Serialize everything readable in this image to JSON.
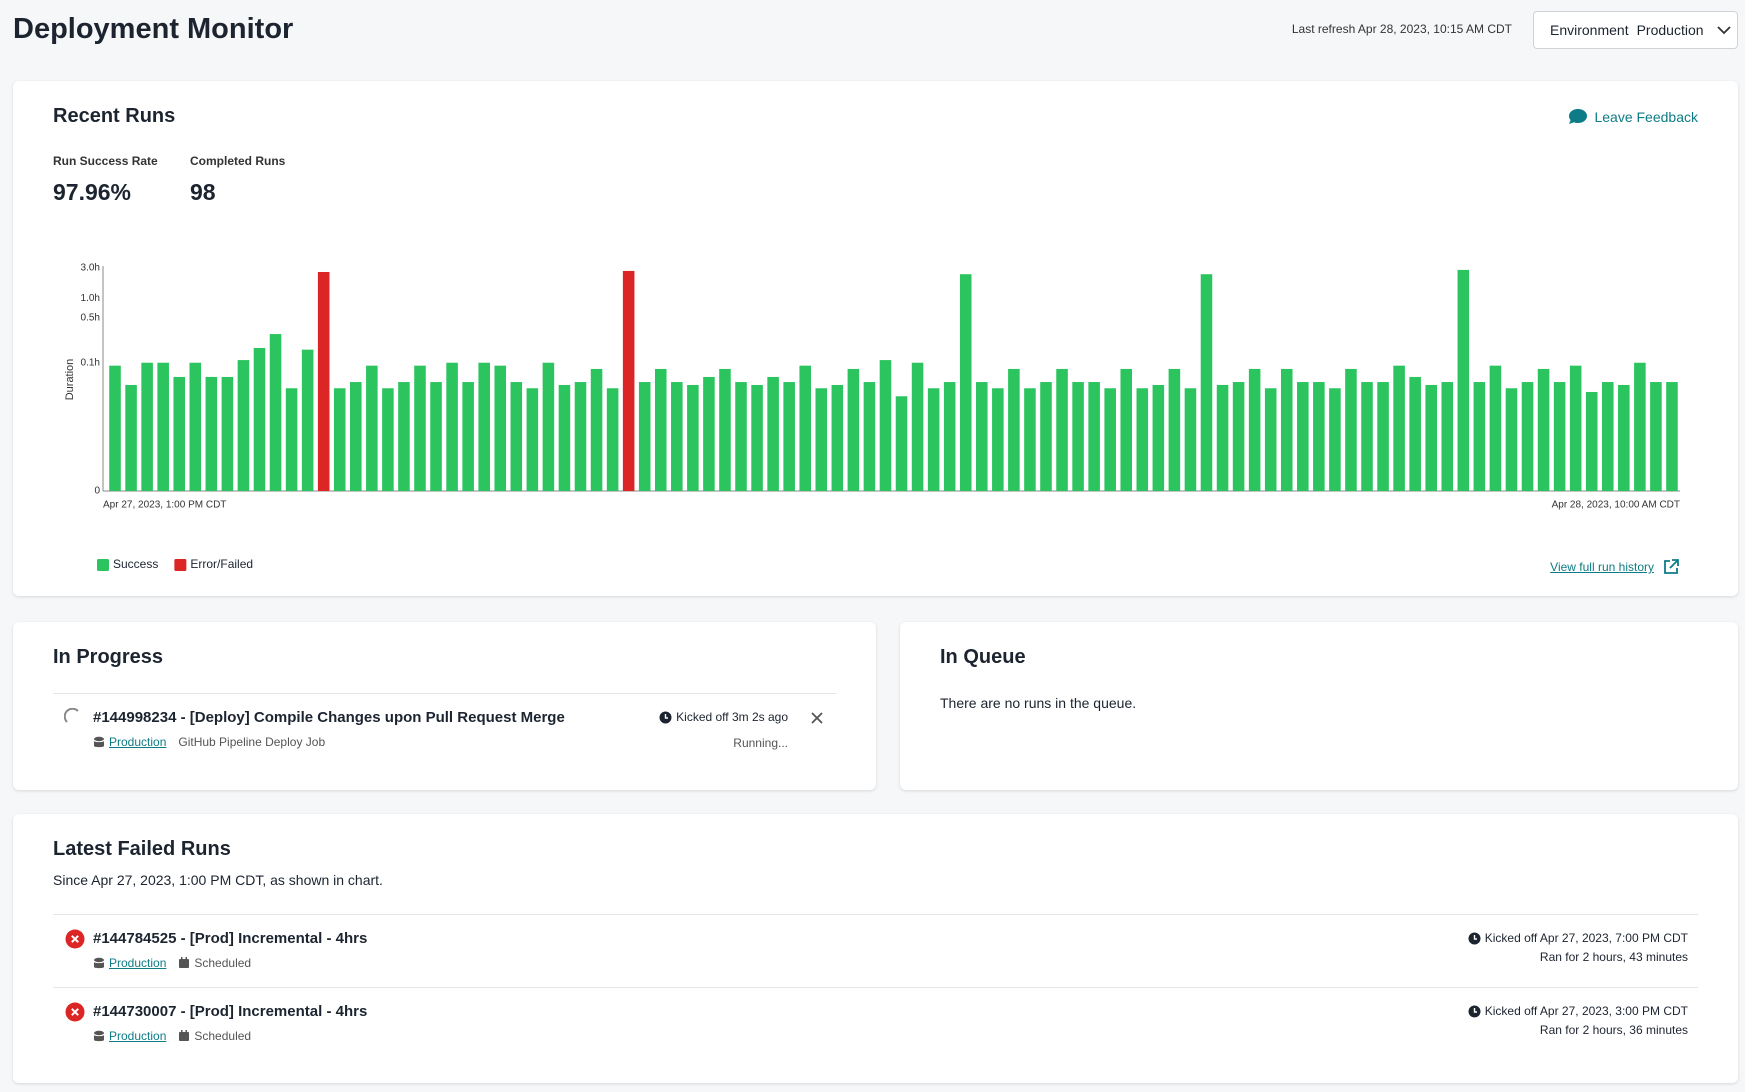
{
  "header": {
    "title": "Deployment Monitor",
    "last_refresh": "Last refresh Apr 28, 2023, 10:15 AM CDT",
    "environment_label": "Environment",
    "environment_value": "Production"
  },
  "recent_runs": {
    "title": "Recent Runs",
    "feedback_link": "Leave Feedback",
    "stats": [
      {
        "label": "Run Success Rate",
        "value": "97.96%"
      },
      {
        "label": "Completed Runs",
        "value": "98"
      }
    ],
    "history_link": "View full run history"
  },
  "chart_data": {
    "type": "bar",
    "y_label": "Duration",
    "yscale": "symlog",
    "linthresh": 0.01,
    "ylim": [
      0,
      3
    ],
    "yticks": [
      0,
      {
        "value": 0.1,
        "label": "0.1h"
      },
      {
        "value": 0.5,
        "label": "0.5h"
      },
      {
        "value": 1,
        "label": "1.0h"
      },
      {
        "value": 3,
        "label": "3.0h"
      }
    ],
    "grid": false,
    "legend": "bottom-left",
    "categories": [
      "Apr 27, 2023, 1:00 PM CDT",
      null,
      null,
      null,
      null,
      null,
      null,
      null,
      null,
      null,
      null,
      null,
      null,
      null,
      null,
      null,
      null,
      null,
      null,
      null,
      null,
      null,
      null,
      null,
      null,
      null,
      null,
      null,
      null,
      null,
      null,
      null,
      null,
      null,
      null,
      null,
      null,
      null,
      null,
      null,
      null,
      null,
      null,
      null,
      null,
      null,
      null,
      null,
      null,
      null,
      null,
      null,
      null,
      null,
      null,
      null,
      null,
      null,
      null,
      null,
      null,
      null,
      null,
      null,
      null,
      null,
      null,
      null,
      null,
      null,
      null,
      null,
      null,
      null,
      null,
      null,
      null,
      null,
      null,
      null,
      null,
      null,
      null,
      null,
      null,
      null,
      null,
      null,
      null,
      null,
      null,
      null,
      null,
      null,
      null,
      null,
      null,
      "Apr 28, 2023, 10:00 AM CDT"
    ],
    "series": [
      {
        "name": "Success",
        "color": "#2cc45e",
        "values": [
          0.09,
          0.045,
          0.1,
          0.1,
          0.06,
          0.1,
          0.06,
          0.06,
          0.11,
          0.17,
          0.28,
          0.04,
          0.16,
          null,
          0.04,
          0.05,
          0.09,
          0.04,
          0.05,
          0.09,
          0.05,
          0.1,
          0.05,
          0.1,
          0.09,
          0.05,
          0.04,
          0.1,
          0.045,
          0.05,
          0.08,
          0.04,
          null,
          0.05,
          0.08,
          0.05,
          0.045,
          0.06,
          0.08,
          0.05,
          0.045,
          0.06,
          0.05,
          0.09,
          0.04,
          0.045,
          0.08,
          0.05,
          0.11,
          0.03,
          0.1,
          0.04,
          0.05,
          2.4,
          0.05,
          0.04,
          0.08,
          0.04,
          0.05,
          0.08,
          0.05,
          0.05,
          0.04,
          0.08,
          0.04,
          0.045,
          0.08,
          0.04,
          2.4,
          0.045,
          0.05,
          0.08,
          0.04,
          0.08,
          0.05,
          0.05,
          0.04,
          0.08,
          0.05,
          0.05,
          0.09,
          0.06,
          0.045,
          0.05,
          2.8,
          0.05,
          0.09,
          0.04,
          0.05,
          0.08,
          0.05,
          0.09,
          0.035,
          0.05,
          0.045,
          0.1,
          0.05,
          0.05
        ]
      },
      {
        "name": "Error/Failed",
        "color": "#dc2626",
        "values": [
          null,
          null,
          null,
          null,
          null,
          null,
          null,
          null,
          null,
          null,
          null,
          null,
          null,
          2.6,
          null,
          null,
          null,
          null,
          null,
          null,
          null,
          null,
          null,
          null,
          null,
          null,
          null,
          null,
          null,
          null,
          null,
          null,
          2.7,
          null,
          null,
          null,
          null,
          null,
          null,
          null,
          null,
          null,
          null,
          null,
          null,
          null,
          null,
          null,
          null,
          null,
          null,
          null,
          null,
          null,
          null,
          null,
          null,
          null,
          null,
          null,
          null,
          null,
          null,
          null,
          null,
          null,
          null,
          null,
          null,
          null,
          null,
          null,
          null,
          null,
          null,
          null,
          null,
          null,
          null,
          null,
          null,
          null,
          null,
          null,
          null,
          null,
          null,
          null,
          null,
          null,
          null,
          null,
          null,
          null,
          null,
          null,
          null,
          null
        ]
      }
    ]
  },
  "in_progress": {
    "title": "In Progress",
    "runs": [
      {
        "title": "#144998234 - [Deploy] Compile Changes upon Pull Request Merge",
        "environment": "Production",
        "trigger": "GitHub Pipeline Deploy Job",
        "kicked_off": "Kicked off 3m 2s ago",
        "status": "Running..."
      }
    ]
  },
  "in_queue": {
    "title": "In Queue",
    "message": "There are no runs in the queue."
  },
  "failed_runs": {
    "title": "Latest Failed Runs",
    "subtitle": "Since Apr 27, 2023, 1:00 PM CDT, as shown in chart.",
    "runs": [
      {
        "title": "#144784525 - [Prod] Incremental - 4hrs",
        "environment": "Production",
        "trigger": "Scheduled",
        "kicked_off": "Kicked off Apr 27, 2023, 7:00 PM CDT",
        "duration": "Ran for 2 hours, 43 minutes"
      },
      {
        "title": "#144730007 - [Prod] Incremental - 4hrs",
        "environment": "Production",
        "trigger": "Scheduled",
        "kicked_off": "Kicked off Apr 27, 2023, 3:00 PM CDT",
        "duration": "Ran for 2 hours, 36 minutes"
      }
    ]
  }
}
